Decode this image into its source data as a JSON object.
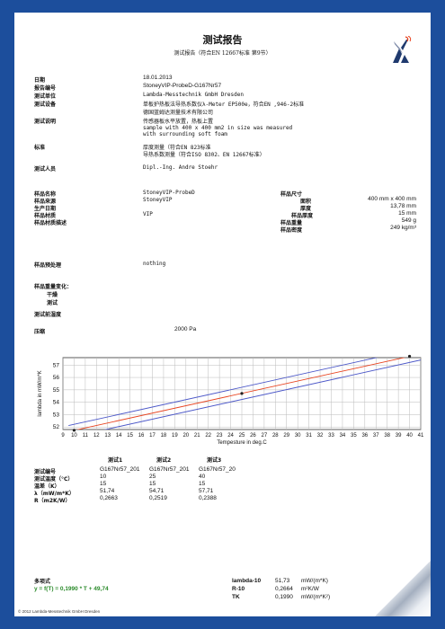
{
  "header": {
    "title": "测试报告",
    "subtitle": "测试报告（符合EN 12667标准 第9节）"
  },
  "info": [
    {
      "label": "日期",
      "value": "18.01.2013"
    },
    {
      "label": "报告编号",
      "value": "StoneyVIP-ProbeD-G167Nr57"
    },
    {
      "label": "测试单位",
      "value": "Lambda-Messtechnik GmbH Dresden"
    },
    {
      "label": "测试设备",
      "value": "单板护热板法导热系数仪λ-Meter EP500e，符合EN ,946-2标准",
      "value2": "德国蓝姆达测量技术有限公司"
    },
    {
      "label": "测试说明",
      "value": "传感器板水平放置，热板上置",
      "value2": "sample with 400 x 400 mm2 in size was measured",
      "value3": "with surrounding soft foam"
    },
    {
      "label": "标准",
      "value": "厚度测量（符合EN 823标准",
      "value2": "导热系数测量（符合ISO 8302、EN 12667标准）"
    },
    {
      "label": "测试人员",
      "value": "Dipl.-Ing. Andre Stoehr"
    }
  ],
  "sample": {
    "name_label": "样品名称",
    "name": "StoneyVIP-ProbeD",
    "source_label": "样品来源",
    "source": "StoneyVIP",
    "date_label": "生产日期",
    "material_label": "样品材质",
    "material": "VIP",
    "desc_label": "样品材质描述",
    "size_label": "样品尺寸",
    "area_label": "面积",
    "area": "400 mm x 400 mm",
    "thickness_label": "厚度",
    "thickness": "13,78 mm",
    "thickness2_label": "样品厚度",
    "thickness2": "15 mm",
    "weight_label": "样品重量",
    "weight": "549 g",
    "density_label": "样品密度",
    "density": "249 kg/m³"
  },
  "pretreat": {
    "label": "样品预处理",
    "value": "nothing"
  },
  "weight_change": {
    "label": "样品重量变化：",
    "dry": "干燥",
    "test": "测试"
  },
  "humidity_label": "测试前湿度",
  "pressure": {
    "label": "压缩",
    "value": "2000 Pa"
  },
  "chart_data": {
    "type": "line",
    "xlabel": "Tempesture in deg.C",
    "ylabel": "lambda in mW/m*K",
    "xlim": [
      9,
      41
    ],
    "ylim": [
      51.8,
      57.6
    ],
    "x_ticks": [
      9,
      10,
      11,
      12,
      13,
      14,
      15,
      16,
      17,
      18,
      19,
      20,
      21,
      22,
      23,
      24,
      25,
      26,
      27,
      28,
      29,
      30,
      31,
      32,
      33,
      34,
      35,
      36,
      37,
      38,
      39,
      40,
      41
    ],
    "y_ticks": [
      52,
      53,
      54,
      55,
      56,
      57
    ],
    "y_tick_labels": [
      "52",
      "53",
      "54",
      "55",
      "56",
      "57"
    ],
    "grid": true,
    "series": [
      {
        "color": "#e8431f",
        "x": [
          9.5,
          41
        ],
        "y": [
          51.63,
          57.9
        ]
      },
      {
        "color": "#4b57c8",
        "x": [
          9.5,
          41
        ],
        "y": [
          52.12,
          58.39
        ]
      },
      {
        "color": "#4b57c8",
        "x": [
          9.5,
          41
        ],
        "y": [
          51.14,
          57.41
        ]
      }
    ],
    "points": [
      {
        "x": 10,
        "y": 51.74
      },
      {
        "x": 25,
        "y": 54.71
      },
      {
        "x": 40,
        "y": 57.71
      }
    ]
  },
  "table": {
    "headers": [
      "测试1",
      "测试2",
      "测试3"
    ],
    "rows": [
      {
        "label": "测试编号",
        "values": [
          "G167Nr57_201",
          "G167Nr57_201",
          "G167Nr57_20"
        ]
      },
      {
        "label": "测试温度（°C）",
        "values": [
          "10",
          "25",
          "40"
        ]
      },
      {
        "label": "温差（K）",
        "values": [
          "15",
          "15",
          "15"
        ]
      },
      {
        "label": "λ（mW/m*K）",
        "values": [
          "51,74",
          "54,71",
          "57,71"
        ]
      },
      {
        "label": "R（m2K/W）",
        "values": [
          "0,2663",
          "0,2519",
          "0,2388"
        ]
      }
    ]
  },
  "formula": {
    "label": "多项式",
    "value": "y = f(T) = 0,1990 * T + 49,74"
  },
  "results": [
    {
      "label": "lambda-10",
      "value": "51,73",
      "unit": "mW/(m*K)"
    },
    {
      "label": "R-10",
      "value": "0,2664",
      "unit": "m²K/W"
    },
    {
      "label": "TK",
      "value": "0,1990",
      "unit": "mW/(m*K²)"
    }
  ],
  "footer": "© 2012 Lambda-Messtechnik GmbH Dresden",
  "colors": {
    "background": "#1c4e9c",
    "fit": "#e8431f",
    "band": "#4b57c8",
    "formula": "#2a8a2a"
  }
}
